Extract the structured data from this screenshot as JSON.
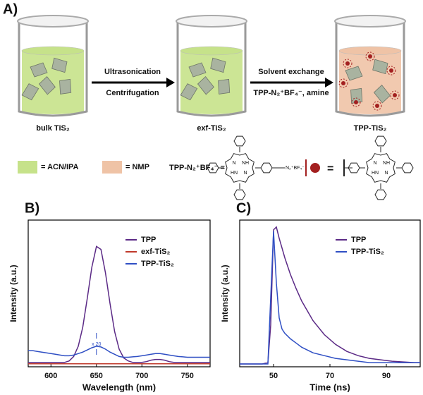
{
  "scheme": {
    "panel_label": "A)",
    "step1": [
      "Ultrasonication",
      "Centrifugation"
    ],
    "step2": [
      "Solvent exchange",
      "TPP-N₂⁺BF₄⁻, amine"
    ],
    "beakers": [
      "bulk TiS₂",
      "exf-TiS₂",
      "TPP-TiS₂"
    ],
    "legend": [
      "= ACN/IPA",
      "= NMP"
    ],
    "molecule_label": "TPP-N₂⁺BF₄⁻ =",
    "diazonium": "N₂⁺BF₄⁻",
    "ring_atoms": [
      "N",
      "NH",
      "HN",
      "N"
    ],
    "equals": "="
  },
  "chart_data": [
    {
      "type": "line",
      "panel_label": "B)",
      "x_label": "Wavelength (nm)",
      "y_label": "Intensity (a.u.)",
      "annotation": "x 20",
      "x": [
        575,
        580,
        585,
        590,
        595,
        600,
        605,
        610,
        615,
        620,
        625,
        630,
        635,
        640,
        645,
        650,
        655,
        660,
        665,
        670,
        675,
        680,
        685,
        690,
        695,
        700,
        705,
        710,
        715,
        720,
        725,
        730,
        735,
        740,
        745,
        750,
        755,
        760,
        765,
        770,
        775
      ],
      "series": [
        {
          "name": "TPP",
          "color": "#5b2a86",
          "values": [
            0.03,
            0.03,
            0.03,
            0.03,
            0.03,
            0.03,
            0.03,
            0.03,
            0.03,
            0.04,
            0.07,
            0.14,
            0.27,
            0.47,
            0.68,
            0.82,
            0.8,
            0.64,
            0.43,
            0.24,
            0.12,
            0.06,
            0.04,
            0.03,
            0.03,
            0.03,
            0.035,
            0.045,
            0.05,
            0.05,
            0.045,
            0.035,
            0.03,
            0.03,
            0.03,
            0.03,
            0.03,
            0.03,
            0.03,
            0.03,
            0.03
          ]
        },
        {
          "name": "exf-TiS₂",
          "color": "#c0392b",
          "values": [
            0.02,
            0.02,
            0.02,
            0.02,
            0.02,
            0.02,
            0.02,
            0.02,
            0.02,
            0.02,
            0.02,
            0.02,
            0.02,
            0.02,
            0.02,
            0.02,
            0.02,
            0.02,
            0.02,
            0.02,
            0.02,
            0.02,
            0.02,
            0.02,
            0.02,
            0.02,
            0.02,
            0.02,
            0.02,
            0.02,
            0.02,
            0.02,
            0.02,
            0.02,
            0.02,
            0.02,
            0.02,
            0.02,
            0.02,
            0.02,
            0.02
          ]
        },
        {
          "name": "TPP-TiS₂",
          "color": "#2f4fc4",
          "values": [
            0.11,
            0.11,
            0.105,
            0.1,
            0.095,
            0.09,
            0.085,
            0.08,
            0.075,
            0.075,
            0.08,
            0.09,
            0.1,
            0.115,
            0.13,
            0.14,
            0.135,
            0.12,
            0.1,
            0.085,
            0.07,
            0.065,
            0.065,
            0.068,
            0.07,
            0.075,
            0.08,
            0.085,
            0.09,
            0.09,
            0.085,
            0.08,
            0.075,
            0.07,
            0.068,
            0.065,
            0.065,
            0.065,
            0.065,
            0.065,
            0.065
          ]
        }
      ],
      "xlim": [
        575,
        775
      ],
      "ylim": [
        0,
        1
      ],
      "xticks": [
        600,
        650,
        700,
        750
      ],
      "legend": "upper right"
    },
    {
      "type": "line",
      "panel_label": "C)",
      "x_label": "Time (ns)",
      "y_label": "Intensity (a.u.)",
      "x": [
        38,
        42,
        46,
        48,
        49,
        50,
        51,
        52,
        53,
        54,
        56,
        58,
        60,
        64,
        68,
        72,
        76,
        80,
        84,
        88,
        92,
        96,
        100,
        102
      ],
      "series": [
        {
          "name": "TPP",
          "color": "#5b2a86",
          "values": [
            0.02,
            0.02,
            0.02,
            0.03,
            0.3,
            0.98,
            1.0,
            0.92,
            0.85,
            0.78,
            0.66,
            0.56,
            0.47,
            0.33,
            0.23,
            0.16,
            0.11,
            0.08,
            0.06,
            0.05,
            0.04,
            0.035,
            0.03,
            0.03
          ]
        },
        {
          "name": "TPP-TiS₂",
          "color": "#2f4fc4",
          "values": [
            0.02,
            0.02,
            0.02,
            0.02,
            0.5,
            0.97,
            0.6,
            0.35,
            0.27,
            0.24,
            0.2,
            0.17,
            0.14,
            0.1,
            0.08,
            0.06,
            0.05,
            0.04,
            0.03,
            0.03,
            0.03,
            0.03,
            0.03,
            0.03
          ]
        }
      ],
      "xlim": [
        38,
        102
      ],
      "ylim": [
        0,
        1.05
      ],
      "xticks": [
        50,
        70,
        90
      ],
      "legend": "upper right"
    }
  ]
}
